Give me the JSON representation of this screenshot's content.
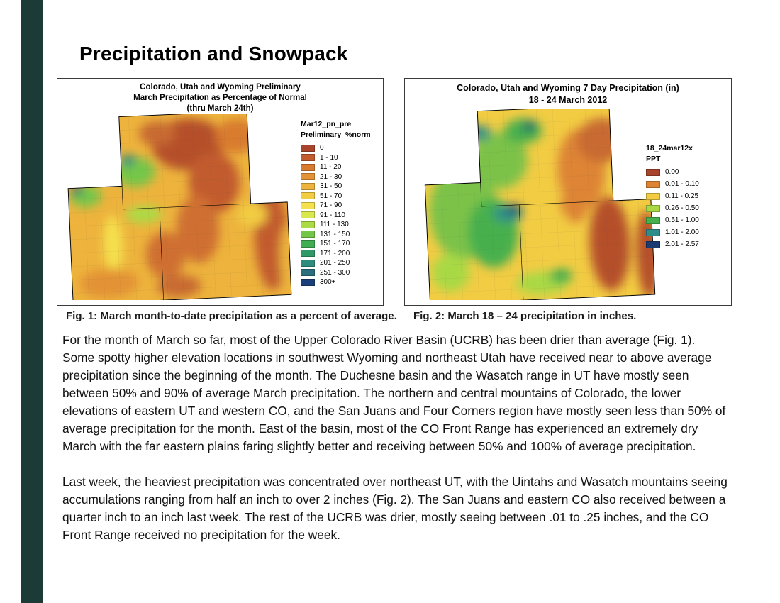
{
  "title": "Precipitation and Snowpack",
  "accent_bar_color": "#1d3b36",
  "figures": [
    {
      "map_title_lines": [
        "Colorado, Utah and Wyoming Preliminary",
        "March Precipitation as Percentage of Normal",
        "(thru March 24th)"
      ],
      "legend": {
        "title_lines": [
          "Mar12_pn_pre",
          "Preliminary_%norm"
        ],
        "items": [
          {
            "label": "0",
            "color": "#a8442c"
          },
          {
            "label": "1 - 10",
            "color": "#c25c2e"
          },
          {
            "label": "11 - 20",
            "color": "#d97b2f"
          },
          {
            "label": "21 - 30",
            "color": "#e39336"
          },
          {
            "label": "31 - 50",
            "color": "#edb33c"
          },
          {
            "label": "51 - 70",
            "color": "#f2cc43"
          },
          {
            "label": "71 - 90",
            "color": "#f5e04d"
          },
          {
            "label": "91 - 110",
            "color": "#d9e84c"
          },
          {
            "label": "111 - 130",
            "color": "#aadb45"
          },
          {
            "label": "131 - 150",
            "color": "#74c648"
          },
          {
            "label": "151 - 170",
            "color": "#3fae52"
          },
          {
            "label": "171 - 200",
            "color": "#2f9a68"
          },
          {
            "label": "201 - 250",
            "color": "#2e8c7e"
          },
          {
            "label": "251 - 300",
            "color": "#2b6f7e"
          },
          {
            "label": "300+",
            "color": "#1b3f78"
          }
        ]
      },
      "caption": "Fig. 1: March month-to-date precipitation as a percent of average."
    },
    {
      "map_title_lines": [
        "Colorado, Utah and Wyoming 7 Day Precipitation (in)",
        "18 - 24 March 2012"
      ],
      "legend": {
        "title_lines": [
          "18_24mar12x",
          "PPT"
        ],
        "items": [
          {
            "label": "0.00",
            "color": "#a8442c"
          },
          {
            "label": "0.01 - 0.10",
            "color": "#dd8434"
          },
          {
            "label": "0.11 - 0.25",
            "color": "#f2cc43"
          },
          {
            "label": "0.26 - 0.50",
            "color": "#a8d944"
          },
          {
            "label": "0.51 - 1.00",
            "color": "#46b04e"
          },
          {
            "label": "1.01 - 2.00",
            "color": "#2e8c8a"
          },
          {
            "label": "2.01 - 2.57",
            "color": "#1a3a72"
          }
        ]
      },
      "caption": "Fig. 2:  March 18 – 24 precipitation in inches."
    }
  ],
  "paragraphs": [
    "For the month of March so far, most of the Upper Colorado River Basin (UCRB) has been drier than average (Fig. 1).  Some spotty higher elevation locations in southwest Wyoming and northeast Utah have received near to above average precipitation since the beginning of the month.  The Duchesne basin and the Wasatch range in UT have mostly seen between 50% and 90% of average March precipitation.  The northern and central mountains of Colorado, the lower elevations of eastern UT and western CO, and the San Juans and Four Corners region have mostly seen less than 50% of average precipitation for the month.  East of the basin, most of the CO Front Range has experienced an extremely dry March with the far eastern plains faring slightly better and receiving between  50% and 100% of average precipitation.",
    "Last week, the heaviest precipitation was concentrated over northeast UT, with the Uintahs and Wasatch mountains seeing accumulations ranging from half an inch to over 2 inches (Fig. 2).  The San Juans and eastern CO also received between a quarter inch to an inch last week.  The rest of the UCRB was drier, mostly seeing between .01 to .25 inches, and the CO Front Range received no precipitation for the week."
  ]
}
